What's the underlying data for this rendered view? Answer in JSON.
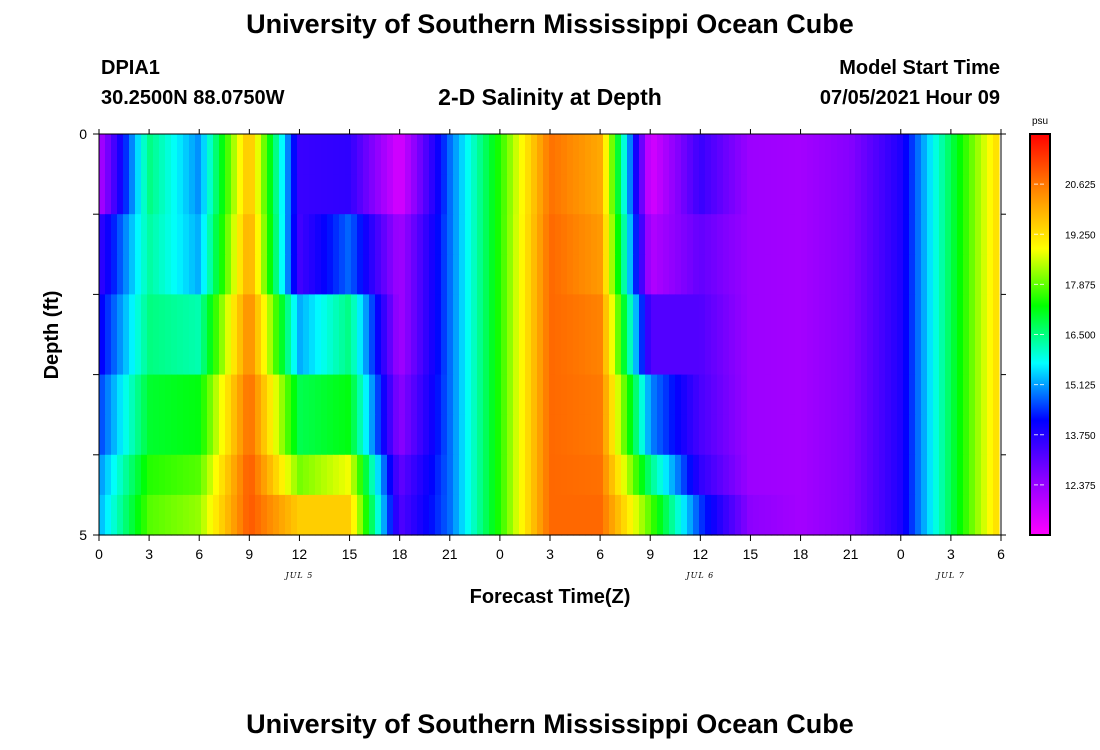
{
  "page": {
    "title_top": "University of Southern Mississippi Ocean Cube",
    "title_bottom": "University of Southern Mississippi Ocean Cube",
    "station_id": "DPIA1",
    "station_coords": "30.2500N  88.0750W",
    "plot_title": "2-D Salinity at Depth",
    "model_start_label": "Model Start Time",
    "model_start_value": "07/05/2021 Hour 09"
  },
  "chart_data": {
    "type": "heatmap",
    "title": "2-D Salinity at Depth",
    "xlabel": "Forecast Time(Z)",
    "ylabel": "Depth (ft)",
    "x_tick_labels": [
      "0",
      "3",
      "6",
      "9",
      "12",
      "15",
      "18",
      "21",
      "0",
      "3",
      "6",
      "9",
      "12",
      "15",
      "18",
      "21",
      "0",
      "3",
      "6"
    ],
    "day_labels": [
      {
        "label": "JUL 5",
        "hour": 12
      },
      {
        "label": "JUL 6",
        "hour": 36
      },
      {
        "label": "JUL 7",
        "hour": 51
      }
    ],
    "y_tick_labels": [
      "0",
      "5"
    ],
    "ylim": [
      0,
      5
    ],
    "xlim_hours": [
      0,
      54
    ],
    "depth_levels": [
      0.25,
      0.75,
      1.25,
      1.75,
      2.25,
      2.75,
      3.25,
      3.75,
      4.25,
      4.75
    ],
    "hours": [
      0,
      3,
      6,
      9,
      12,
      15,
      18,
      21,
      24,
      27,
      30,
      33,
      36,
      39,
      42,
      45,
      48,
      51,
      54
    ],
    "salinity_rows": [
      [
        12.0,
        16.5,
        15.0,
        19.8,
        13.5,
        13.6,
        11.5,
        14.8,
        17.5,
        20.7,
        20.0,
        11.5,
        13.5,
        12.3,
        12.2,
        12.6,
        13.8,
        16.8,
        19.5
      ],
      [
        12.0,
        16.5,
        15.0,
        19.8,
        13.5,
        13.6,
        11.5,
        14.8,
        17.5,
        20.7,
        20.0,
        11.5,
        13.5,
        12.3,
        12.2,
        12.6,
        13.8,
        16.8,
        19.5
      ],
      [
        13.5,
        16.3,
        15.2,
        20.1,
        13.4,
        14.8,
        12.2,
        14.8,
        17.5,
        20.8,
        20.2,
        12.0,
        13.0,
        12.3,
        12.2,
        12.6,
        13.8,
        16.8,
        19.5
      ],
      [
        13.5,
        16.3,
        15.2,
        20.1,
        13.4,
        14.8,
        12.2,
        14.8,
        17.5,
        20.8,
        20.2,
        12.0,
        13.0,
        12.3,
        12.2,
        12.6,
        13.8,
        16.8,
        19.5
      ],
      [
        14.0,
        16.5,
        16.2,
        20.5,
        15.2,
        16.5,
        12.2,
        14.8,
        17.5,
        20.8,
        20.5,
        13.2,
        13.2,
        12.3,
        12.2,
        12.6,
        13.8,
        16.8,
        19.5
      ],
      [
        14.0,
        16.5,
        16.2,
        20.5,
        15.2,
        16.5,
        12.2,
        14.8,
        17.5,
        20.8,
        20.5,
        13.2,
        13.2,
        12.3,
        12.2,
        12.6,
        13.8,
        16.8,
        19.5
      ],
      [
        14.5,
        17.0,
        17.2,
        20.8,
        16.8,
        17.2,
        12.5,
        14.8,
        17.5,
        20.8,
        20.6,
        15.0,
        13.3,
        12.3,
        12.2,
        12.6,
        13.8,
        16.8,
        19.5
      ],
      [
        14.5,
        17.0,
        17.2,
        20.8,
        16.8,
        17.2,
        12.5,
        14.8,
        17.5,
        20.8,
        20.6,
        15.0,
        13.3,
        12.3,
        12.2,
        12.6,
        13.8,
        16.8,
        19.5
      ],
      [
        15.0,
        17.5,
        17.8,
        21.0,
        18.0,
        18.8,
        13.0,
        14.8,
        17.5,
        20.8,
        20.7,
        16.5,
        13.6,
        12.3,
        12.2,
        12.6,
        13.8,
        16.8,
        19.5
      ],
      [
        15.2,
        17.8,
        18.2,
        21.0,
        19.5,
        19.5,
        13.2,
        14.8,
        17.5,
        20.8,
        20.8,
        17.8,
        14.5,
        12.5,
        12.2,
        12.6,
        13.8,
        16.8,
        19.5
      ]
    ],
    "colorbar": {
      "unit_label": "psu",
      "tick_labels": [
        "20.625",
        "19.250",
        "17.875",
        "16.500",
        "15.125",
        "13.750",
        "12.375"
      ],
      "range": [
        11.0,
        22.0
      ],
      "colors": [
        "#ff00ff",
        "#8800ff",
        "#0000ff",
        "#00ffff",
        "#00ff00",
        "#ffff00",
        "#ff8800",
        "#ff0000"
      ]
    },
    "grid": false,
    "legend": "right"
  }
}
